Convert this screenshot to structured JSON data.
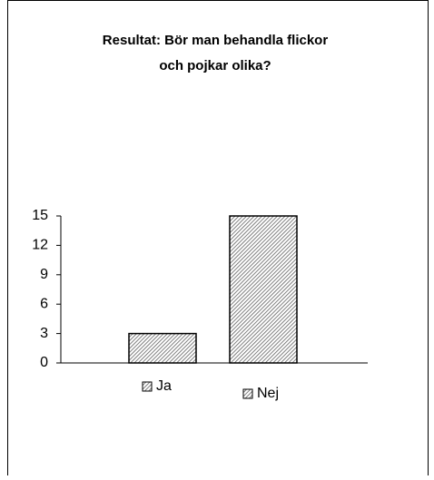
{
  "chart_data": {
    "type": "bar",
    "title": [
      "Resultat: Bör man behandla flickor",
      "och pojkar olika?"
    ],
    "categories": [
      "Ja",
      "Nej"
    ],
    "values": [
      3,
      15
    ],
    "color": "#606060",
    "ylim": [
      0,
      15
    ],
    "yticks": [
      0,
      3,
      6,
      9,
      12,
      15
    ],
    "grid": false
  }
}
